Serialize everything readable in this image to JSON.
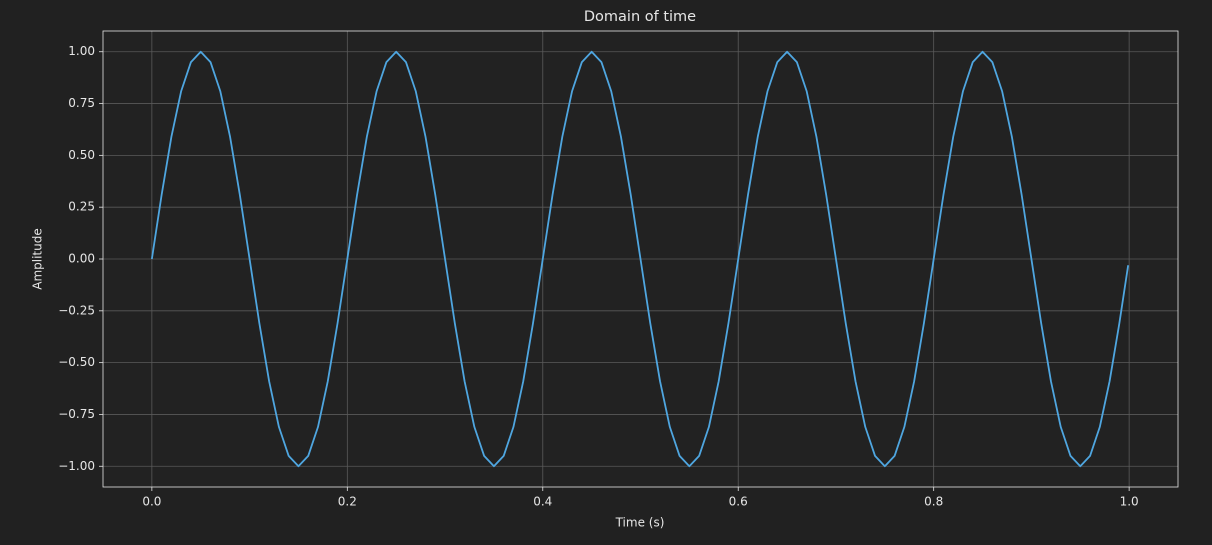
{
  "chart_data": {
    "type": "line",
    "title": "Domain of time",
    "x_label": "Time (s)",
    "y_label": "Amplitude",
    "color": "#4fa6e0",
    "grid": true,
    "xlim": [
      -0.05,
      1.05
    ],
    "ylim": [
      -1.1,
      1.1
    ],
    "xticks": [
      {
        "value": 0,
        "label": "0.0"
      },
      {
        "value": 0.2,
        "label": "0.2"
      },
      {
        "value": 0.4,
        "label": "0.4"
      },
      {
        "value": 0.6,
        "label": "0.6"
      },
      {
        "value": 0.8,
        "label": "0.8"
      },
      {
        "value": 1,
        "label": "1.0"
      }
    ],
    "yticks": [
      {
        "value": -1,
        "label": "−1.00"
      },
      {
        "value": -0.75,
        "label": "−0.75"
      },
      {
        "value": -0.5,
        "label": "−0.50"
      },
      {
        "value": -0.25,
        "label": "−0.25"
      },
      {
        "value": 0,
        "label": "0.00"
      },
      {
        "value": 0.25,
        "label": "0.25"
      },
      {
        "value": 0.5,
        "label": "0.50"
      },
      {
        "value": 0.75,
        "label": "0.75"
      },
      {
        "value": 1,
        "label": "1.00"
      }
    ],
    "x": [
      0,
      0.01,
      0.02,
      0.03,
      0.04,
      0.05,
      0.06,
      0.07,
      0.08,
      0.09,
      0.1,
      0.11,
      0.12,
      0.13,
      0.14,
      0.15,
      0.16,
      0.17,
      0.18,
      0.19,
      0.2,
      0.21,
      0.22,
      0.23,
      0.24,
      0.25,
      0.26,
      0.27,
      0.28,
      0.29,
      0.3,
      0.31,
      0.32,
      0.33,
      0.34,
      0.35,
      0.36,
      0.37,
      0.38,
      0.39,
      0.4,
      0.41,
      0.42,
      0.43,
      0.44,
      0.45,
      0.46,
      0.47,
      0.48,
      0.49,
      0.5,
      0.51,
      0.52,
      0.53,
      0.54,
      0.55,
      0.56,
      0.57,
      0.58,
      0.59,
      0.6,
      0.61,
      0.62,
      0.63,
      0.64,
      0.65,
      0.66,
      0.67,
      0.68,
      0.69,
      0.7,
      0.71,
      0.72,
      0.73,
      0.74,
      0.75,
      0.76,
      0.77,
      0.78,
      0.79,
      0.8,
      0.81,
      0.82,
      0.83,
      0.84,
      0.85,
      0.86,
      0.87,
      0.88,
      0.89,
      0.9,
      0.91,
      0.92,
      0.93,
      0.94,
      0.95,
      0.96,
      0.97,
      0.98,
      0.99,
      0.999
    ],
    "values": [
      0,
      0.31,
      0.59,
      0.81,
      0.95,
      1,
      0.95,
      0.81,
      0.59,
      0.31,
      0,
      -0.31,
      -0.59,
      -0.81,
      -0.95,
      -1,
      -0.95,
      -0.81,
      -0.59,
      -0.31,
      0,
      0.31,
      0.59,
      0.81,
      0.95,
      1,
      0.95,
      0.81,
      0.59,
      0.31,
      0,
      -0.31,
      -0.59,
      -0.81,
      -0.95,
      -1,
      -0.95,
      -0.81,
      -0.59,
      -0.31,
      0,
      0.31,
      0.59,
      0.81,
      0.95,
      1,
      0.95,
      0.81,
      0.59,
      0.31,
      0,
      -0.31,
      -0.59,
      -0.81,
      -0.95,
      -1,
      -0.95,
      -0.81,
      -0.59,
      -0.31,
      0,
      0.31,
      0.59,
      0.81,
      0.95,
      1,
      0.95,
      0.81,
      0.59,
      0.31,
      0,
      -0.31,
      -0.59,
      -0.81,
      -0.95,
      -1,
      -0.95,
      -0.81,
      -0.59,
      -0.31,
      0,
      0.31,
      0.59,
      0.81,
      0.95,
      1,
      0.95,
      0.81,
      0.59,
      0.31,
      0,
      -0.31,
      -0.59,
      -0.81,
      -0.95,
      -1,
      -0.95,
      -0.81,
      -0.59,
      -0.31,
      -0.03
    ]
  }
}
